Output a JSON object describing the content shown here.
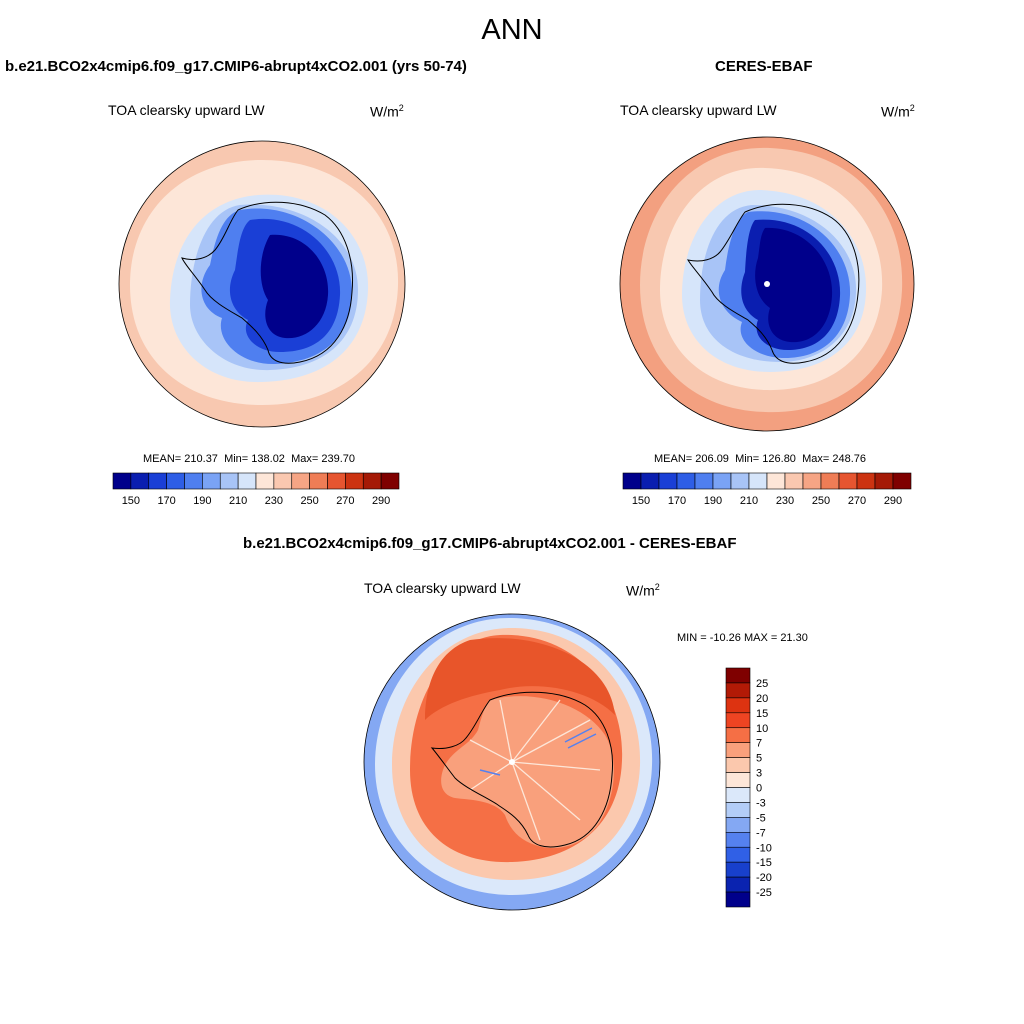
{
  "main_title": "ANN",
  "chart_data": [
    {
      "type": "heatmap",
      "title": "b.e21.BCO2x4cmip6.f09_g17.CMIP6-abrupt4xCO2.001 (yrs 50-74)",
      "variable": "TOA clearsky upward LW",
      "units_base": "W/m",
      "units_exp": "2",
      "projection": "south polar stereographic",
      "stats": {
        "mean_label": "MEAN=",
        "mean": "210.37",
        "min_label": "Min=",
        "min": "138.02",
        "max_label": "Max=",
        "max": "239.70"
      },
      "colorbar_levels": [
        150,
        160,
        170,
        180,
        190,
        200,
        210,
        220,
        230,
        240,
        250,
        260,
        270,
        280,
        290
      ],
      "colorbar_labels": [
        "150",
        "170",
        "190",
        "210",
        "230",
        "250",
        "270",
        "290"
      ],
      "colorbar_colors": [
        "#00008b",
        "#0a1eb0",
        "#1a3fd6",
        "#2e5ee6",
        "#4f7ff0",
        "#7aa3f5",
        "#a8c4f7",
        "#d6e5fa",
        "#fde6d8",
        "#fac8b0",
        "#f6a585",
        "#ef7d56",
        "#e65530",
        "#cc3311",
        "#a51a06",
        "#7f0000"
      ],
      "model_fields": {
        "ocean_far": "#f8c8b0",
        "ocean_mid": "#fde6d8",
        "ocean_near": "#d6e5fa",
        "ice_edge": "#7aa3f5",
        "coast": "#4f7ff0",
        "interior": "#1a3fd6",
        "plateau": "#00008b"
      }
    },
    {
      "type": "heatmap",
      "title": "CERES-EBAF",
      "variable": "TOA clearsky upward LW",
      "units_base": "W/m",
      "units_exp": "2",
      "projection": "south polar stereographic",
      "stats": {
        "mean_label": "MEAN=",
        "mean": "206.09",
        "min_label": "Min=",
        "min": "126.80",
        "max_label": "Max=",
        "max": "248.76"
      },
      "colorbar_levels": [
        150,
        160,
        170,
        180,
        190,
        200,
        210,
        220,
        230,
        240,
        250,
        260,
        270,
        280,
        290
      ],
      "colorbar_labels": [
        "150",
        "170",
        "190",
        "210",
        "230",
        "250",
        "270",
        "290"
      ],
      "colorbar_colors": [
        "#00008b",
        "#0a1eb0",
        "#1a3fd6",
        "#2e5ee6",
        "#4f7ff0",
        "#7aa3f5",
        "#a8c4f7",
        "#d6e5fa",
        "#fde6d8",
        "#fac8b0",
        "#f6a585",
        "#ef7d56",
        "#e65530",
        "#cc3311",
        "#a51a06",
        "#7f0000"
      ],
      "model_fields": {
        "ocean_far": "#f3a080",
        "ocean_mid": "#f8c8b0",
        "ocean_near": "#fde6d8",
        "ice_edge": "#a8c4f7",
        "coast": "#4f7ff0",
        "interior": "#0a1eb0",
        "plateau": "#00008b"
      }
    },
    {
      "type": "heatmap",
      "title": "b.e21.BCO2x4cmip6.f09_g17.CMIP6-abrupt4xCO2.001 - CERES-EBAF",
      "variable": "TOA clearsky upward LW",
      "units_base": "W/m",
      "units_exp": "2",
      "projection": "south polar stereographic",
      "stats": {
        "text": "MIN = -10.26 MAX =  21.30"
      },
      "colorbar_levels": [
        -25,
        -20,
        -15,
        -10,
        -7,
        -5,
        -3,
        0,
        3,
        5,
        7,
        10,
        15,
        20,
        25
      ],
      "colorbar_labels": [
        "25",
        "20",
        "15",
        "10",
        "7",
        "5",
        "3",
        "0",
        "-3",
        "-5",
        "-7",
        "-10",
        "-15",
        "-20",
        "-25"
      ],
      "colorbar_colors": [
        "#7f0000",
        "#b21a06",
        "#dd3311",
        "#ee4422",
        "#f56f45",
        "#f9a07c",
        "#fbc8ad",
        "#fde6d8",
        "#dbe8fa",
        "#b3cdf7",
        "#84a8f3",
        "#5581ef",
        "#3060e6",
        "#1840cc",
        "#0a23b0",
        "#00008b"
      ]
    }
  ]
}
